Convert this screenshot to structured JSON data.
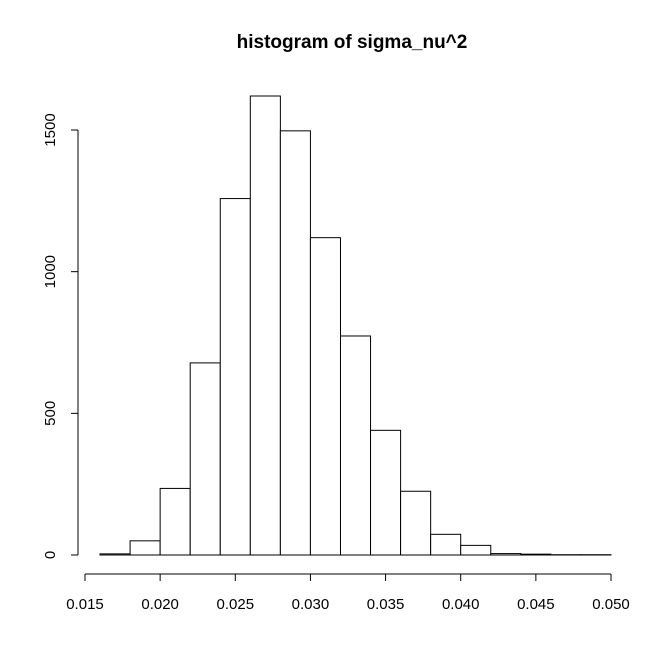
{
  "chart_data": {
    "type": "bar",
    "title": "histogram of sigma_nu^2",
    "xlabel": "",
    "ylabel": "",
    "bin_edges": [
      0.016,
      0.018,
      0.02,
      0.022,
      0.024,
      0.026,
      0.028,
      0.03,
      0.032,
      0.034,
      0.036,
      0.038,
      0.04,
      0.042,
      0.044,
      0.046,
      0.048,
      0.05
    ],
    "values": [
      4,
      50,
      235,
      678,
      1258,
      1620,
      1497,
      1120,
      773,
      440,
      225,
      73,
      34,
      5,
      3,
      1,
      1
    ],
    "xlim": [
      0.016,
      0.05
    ],
    "ylim": [
      0,
      1620
    ],
    "x_ticks": [
      0.015,
      0.02,
      0.025,
      0.03,
      0.035,
      0.04,
      0.045,
      0.05
    ],
    "x_tick_labels": [
      "0.015",
      "0.020",
      "0.025",
      "0.030",
      "0.035",
      "0.040",
      "0.045",
      "0.050"
    ],
    "y_ticks": [
      0,
      500,
      1000,
      1500
    ],
    "y_tick_labels": [
      "0",
      "500",
      "1000",
      "1500"
    ],
    "grid": false,
    "legend": "none"
  }
}
